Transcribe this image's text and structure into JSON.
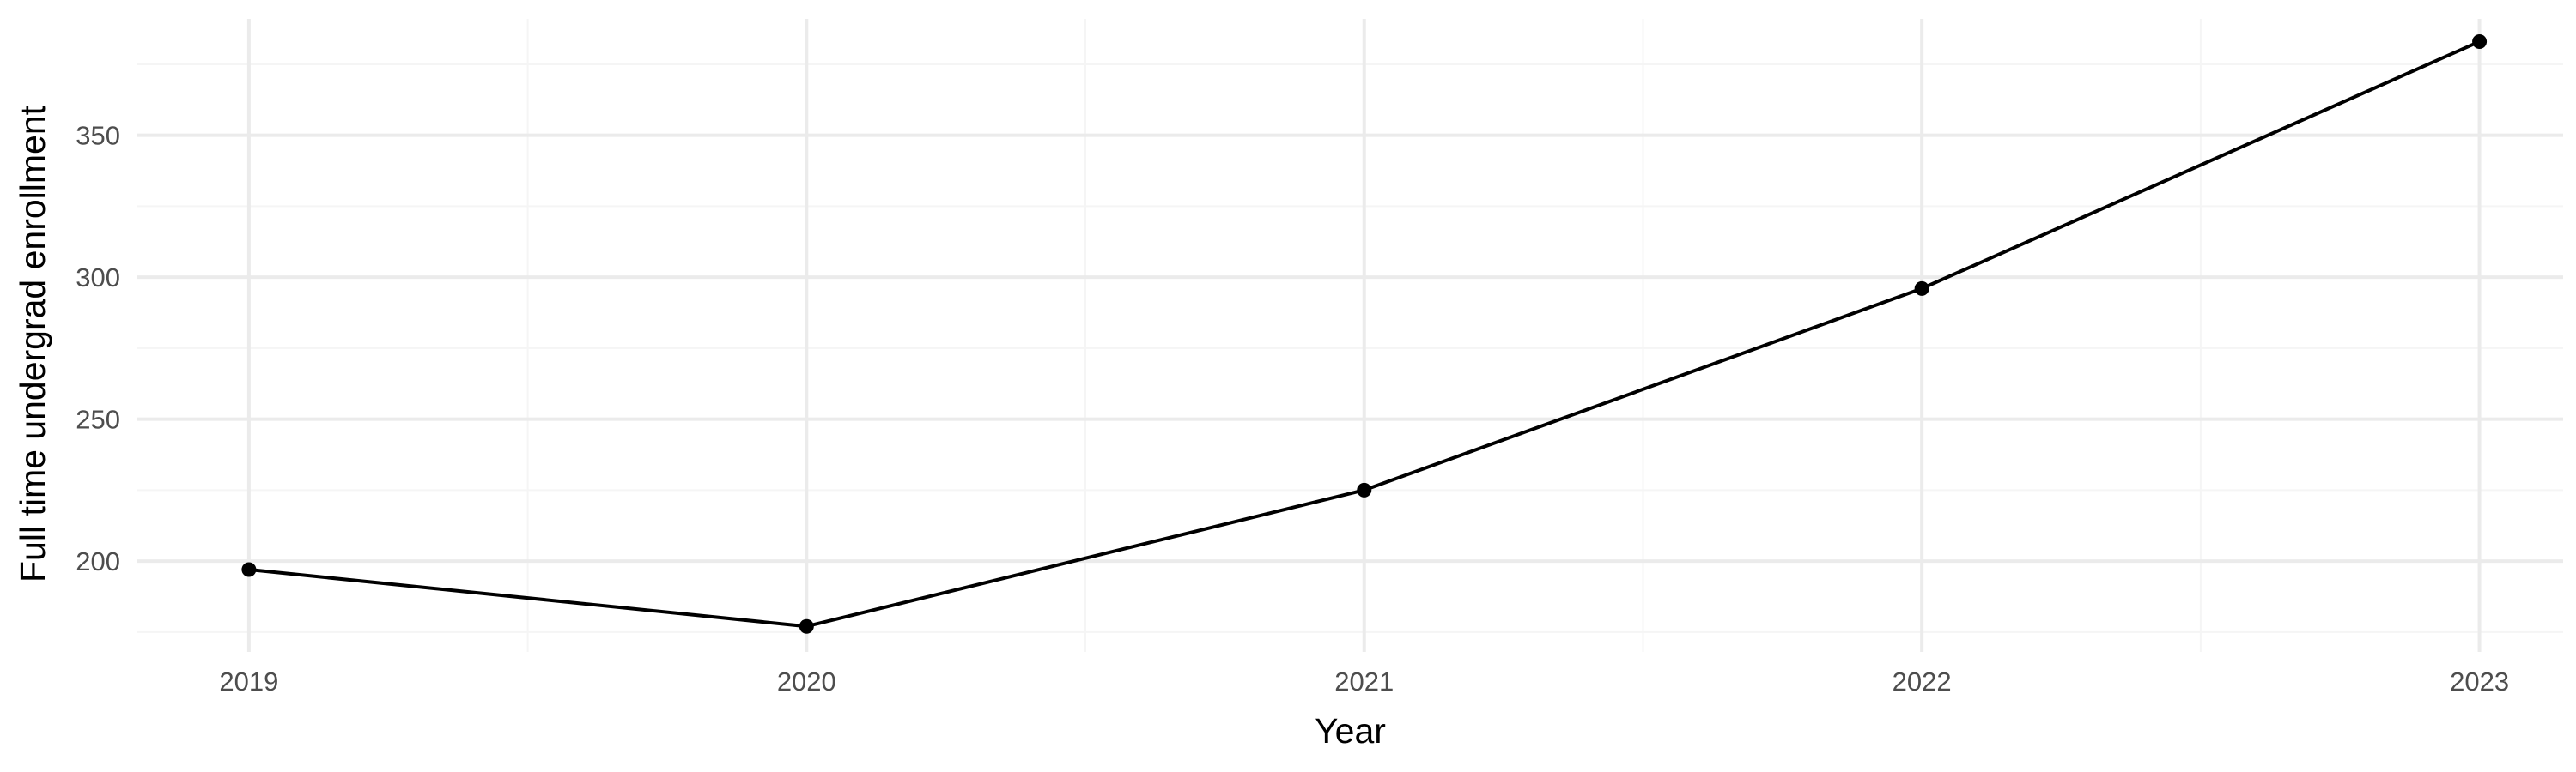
{
  "chart_data": {
    "type": "line",
    "title": "",
    "xlabel": "Year",
    "ylabel": "Full time undergrad enrollment",
    "x": [
      2019,
      2020,
      2021,
      2022,
      2023
    ],
    "series": [
      {
        "values": [
          197,
          177,
          225,
          296,
          383
        ]
      }
    ],
    "xlim": [
      2018.8,
      2023.15
    ],
    "ylim": [
      168,
      391
    ],
    "x_ticks": [
      "2019",
      "2020",
      "2021",
      "2022",
      "2023"
    ],
    "y_ticks": [
      "200",
      "250",
      "300",
      "350"
    ],
    "x_tick_values": [
      2019,
      2020,
      2021,
      2022,
      2023
    ],
    "y_tick_values": [
      200,
      250,
      300,
      350
    ],
    "x_minor_ticks": [
      2019.5,
      2020.5,
      2021.5,
      2022.5
    ],
    "y_minor_ticks": [
      175,
      225,
      275,
      325,
      375
    ],
    "grid": true,
    "legend": "none",
    "markers": true
  },
  "colors": {
    "background": "#ffffff",
    "grid_major": "#ebebeb",
    "grid_minor": "#f5f5f5",
    "line": "#000000",
    "points": "#000000",
    "tick_text": "#4d4d4d",
    "axis_title": "#000000"
  }
}
